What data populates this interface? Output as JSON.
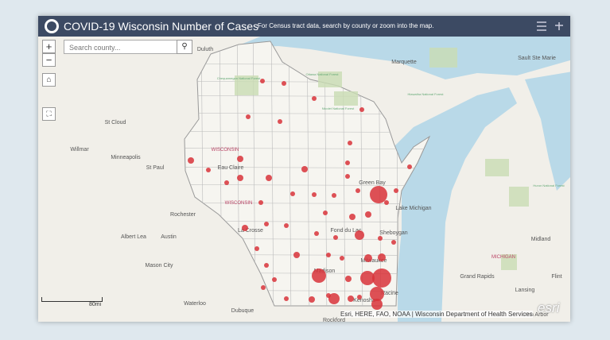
{
  "header": {
    "title": "COVID-19 Wisconsin Number of Cases",
    "subtitle": "For Census tract data, search by county or zoom into the map."
  },
  "search": {
    "placeholder": "Search county..."
  },
  "map": {
    "labels": [
      "Duluth",
      "Marquette",
      "Sault Ste Marie",
      "St Cloud",
      "Willmar",
      "Minneapolis",
      "St Paul",
      "Eau Claire",
      "WISCONSIN",
      "WISCONSIN",
      "Green Bay",
      "Lake Michigan",
      "Rochester",
      "La Crosse",
      "Fond du Lac",
      "Sheboygan",
      "Albert Lea",
      "Austin",
      "Mason City",
      "Madison",
      "Milwaukee",
      "Racine",
      "Kenosha",
      "Grand Rapids",
      "Lansing",
      "Midland",
      "MICHIGAN",
      "Waterloo",
      "Dubuque",
      "Rockford",
      "Flint",
      "Ann Arbor",
      "Chequamegon National Forest",
      "Ottawa National Forest",
      "Hiawatha National Forest",
      "Nicolet National Forest",
      "Huron National Forest"
    ]
  },
  "scale": {
    "label": "80mi"
  },
  "attribution": "Esri, HERE, FAO, NOAA | Wisconsin Department of Health Services",
  "logo": "esri"
}
